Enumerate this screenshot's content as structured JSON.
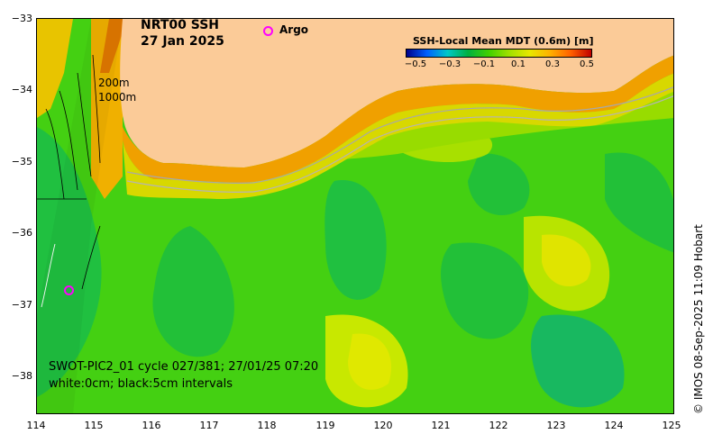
{
  "title": {
    "product": "NRT00 SSH",
    "date": "27 Jan 2025"
  },
  "legend": {
    "argo_label": "Argo",
    "argo_color": "#ff00ff"
  },
  "colorbar": {
    "title": "SSH-Local Mean MDT (0.6m) [m]",
    "ticks": [
      "−0.5",
      "−0.3",
      "−0.1",
      "0.1",
      "0.3",
      "0.5"
    ],
    "colors": [
      "#00008b",
      "#0060ff",
      "#00c8c8",
      "#00b040",
      "#40d000",
      "#a0e000",
      "#e8e800",
      "#ffb000",
      "#ff6000",
      "#c00000"
    ]
  },
  "depth_contours": {
    "shallow": "200m",
    "deep": "1000m"
  },
  "axes": {
    "y_ticks": [
      "−33",
      "−34",
      "−35",
      "−36",
      "−37",
      "−38"
    ],
    "x_ticks": [
      "114",
      "115",
      "116",
      "117",
      "118",
      "119",
      "120",
      "121",
      "122",
      "123",
      "124",
      "125"
    ]
  },
  "swot_info": "SWOT-PIC2_01 cycle 027/381; 27/01/25 07:20",
  "contour_info": "white:0cm; black:5cm intervals",
  "credit": "© IMOS 08-Sep-2025 11:09 Hobart",
  "colors": {
    "land": "#fbcb98",
    "base_field": "#40d010",
    "high_field": "#c8e800",
    "low_field": "#00b040"
  }
}
